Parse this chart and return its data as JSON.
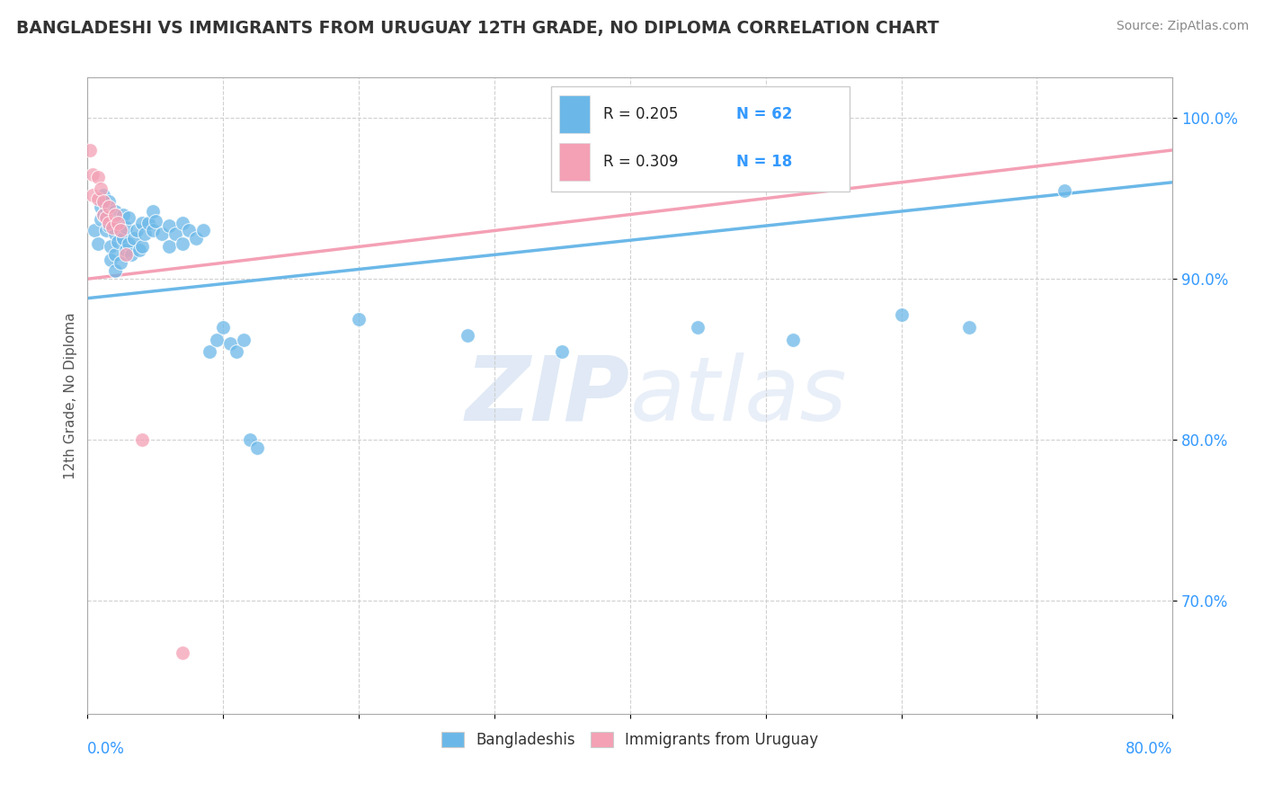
{
  "title": "BANGLADESHI VS IMMIGRANTS FROM URUGUAY 12TH GRADE, NO DIPLOMA CORRELATION CHART",
  "source": "Source: ZipAtlas.com",
  "ylabel": "12th Grade, No Diploma",
  "xlim": [
    0.0,
    0.8
  ],
  "ylim": [
    0.63,
    1.025
  ],
  "legend_blue_r": "R = 0.205",
  "legend_blue_n": "N = 62",
  "legend_pink_r": "R = 0.309",
  "legend_pink_n": "N = 18",
  "blue_color": "#6bb8e8",
  "pink_color": "#f4a0b5",
  "blue_scatter": [
    [
      0.005,
      0.93
    ],
    [
      0.008,
      0.922
    ],
    [
      0.01,
      0.945
    ],
    [
      0.01,
      0.937
    ],
    [
      0.012,
      0.952
    ],
    [
      0.012,
      0.94
    ],
    [
      0.014,
      0.943
    ],
    [
      0.014,
      0.93
    ],
    [
      0.016,
      0.948
    ],
    [
      0.016,
      0.933
    ],
    [
      0.017,
      0.92
    ],
    [
      0.017,
      0.912
    ],
    [
      0.02,
      0.942
    ],
    [
      0.02,
      0.928
    ],
    [
      0.02,
      0.915
    ],
    [
      0.02,
      0.905
    ],
    [
      0.022,
      0.936
    ],
    [
      0.022,
      0.923
    ],
    [
      0.024,
      0.93
    ],
    [
      0.024,
      0.91
    ],
    [
      0.026,
      0.94
    ],
    [
      0.026,
      0.925
    ],
    [
      0.028,
      0.932
    ],
    [
      0.028,
      0.918
    ],
    [
      0.03,
      0.938
    ],
    [
      0.03,
      0.922
    ],
    [
      0.032,
      0.915
    ],
    [
      0.034,
      0.925
    ],
    [
      0.036,
      0.93
    ],
    [
      0.038,
      0.918
    ],
    [
      0.04,
      0.935
    ],
    [
      0.04,
      0.92
    ],
    [
      0.042,
      0.928
    ],
    [
      0.045,
      0.935
    ],
    [
      0.048,
      0.942
    ],
    [
      0.048,
      0.93
    ],
    [
      0.05,
      0.936
    ],
    [
      0.055,
      0.928
    ],
    [
      0.06,
      0.933
    ],
    [
      0.06,
      0.92
    ],
    [
      0.065,
      0.928
    ],
    [
      0.07,
      0.935
    ],
    [
      0.07,
      0.922
    ],
    [
      0.075,
      0.93
    ],
    [
      0.08,
      0.925
    ],
    [
      0.085,
      0.93
    ],
    [
      0.09,
      0.855
    ],
    [
      0.095,
      0.862
    ],
    [
      0.1,
      0.87
    ],
    [
      0.105,
      0.86
    ],
    [
      0.11,
      0.855
    ],
    [
      0.115,
      0.862
    ],
    [
      0.12,
      0.8
    ],
    [
      0.125,
      0.795
    ],
    [
      0.2,
      0.875
    ],
    [
      0.28,
      0.865
    ],
    [
      0.35,
      0.855
    ],
    [
      0.45,
      0.87
    ],
    [
      0.52,
      0.862
    ],
    [
      0.6,
      0.878
    ],
    [
      0.65,
      0.87
    ],
    [
      0.72,
      0.955
    ]
  ],
  "pink_scatter": [
    [
      0.002,
      0.98
    ],
    [
      0.004,
      0.965
    ],
    [
      0.004,
      0.952
    ],
    [
      0.008,
      0.963
    ],
    [
      0.008,
      0.95
    ],
    [
      0.01,
      0.956
    ],
    [
      0.012,
      0.948
    ],
    [
      0.012,
      0.94
    ],
    [
      0.014,
      0.938
    ],
    [
      0.016,
      0.945
    ],
    [
      0.016,
      0.935
    ],
    [
      0.018,
      0.932
    ],
    [
      0.02,
      0.94
    ],
    [
      0.022,
      0.935
    ],
    [
      0.024,
      0.93
    ],
    [
      0.028,
      0.915
    ],
    [
      0.04,
      0.8
    ],
    [
      0.07,
      0.668
    ]
  ],
  "blue_line_x": [
    0.0,
    0.8
  ],
  "blue_line_y": [
    0.888,
    0.96
  ],
  "pink_line_x": [
    0.0,
    0.8
  ],
  "pink_line_y": [
    0.9,
    0.98
  ],
  "watermark_zip": "ZIP",
  "watermark_atlas": "atlas",
  "background_color": "#ffffff",
  "grid_color": "#d0d0d0"
}
